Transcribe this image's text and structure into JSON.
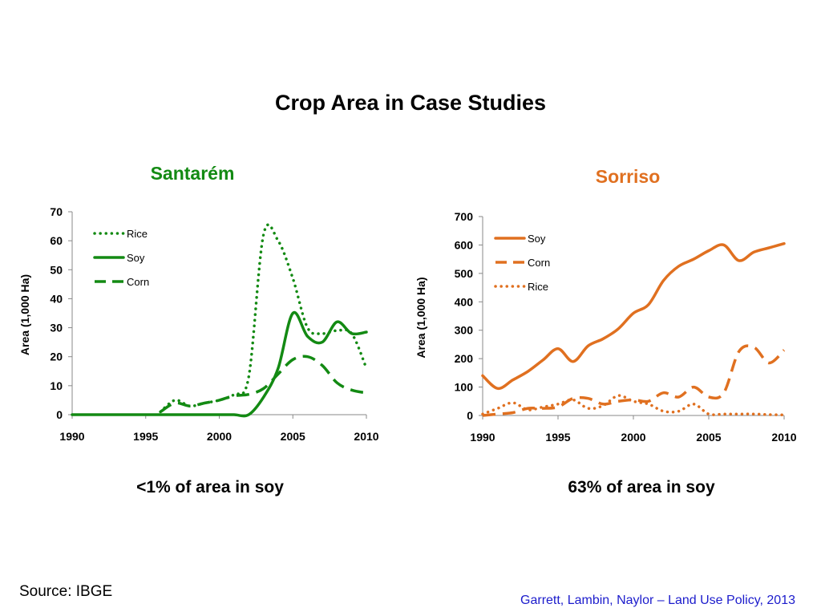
{
  "slide": {
    "title": "Crop Area in Case Studies",
    "source": "Source: IBGE",
    "citation": "Garrett, Lambin, Naylor  – Land Use Policy, 2013"
  },
  "chart_data": [
    {
      "type": "line",
      "title": "Santarém",
      "caption": "<1% of area in soy",
      "ylabel": "Area (1,000 Ha)",
      "xlabel": "",
      "xlim": [
        1990,
        2010
      ],
      "ylim": [
        0,
        70
      ],
      "xticks": [
        1990,
        1995,
        2000,
        2005,
        2010
      ],
      "yticks": [
        0,
        10,
        20,
        30,
        40,
        50,
        60,
        70
      ],
      "color": "#138a13",
      "legend": "top-left",
      "grid": false,
      "series": [
        {
          "name": "Rice",
          "style": "dotted",
          "x": [
            1996,
            1997,
            1998,
            1999,
            2000,
            2001,
            2002,
            2003,
            2004,
            2005,
            2006,
            2007,
            2008,
            2009,
            2010
          ],
          "y": [
            1,
            5,
            3,
            4,
            5,
            7,
            13,
            62,
            60,
            47,
            30,
            28,
            29,
            28,
            16
          ]
        },
        {
          "name": "Soy",
          "style": "solid",
          "x": [
            1990,
            1995,
            2000,
            2001,
            2002,
            2003,
            2004,
            2005,
            2006,
            2007,
            2008,
            2009,
            2010
          ],
          "y": [
            0,
            0,
            0,
            0,
            0,
            6,
            16,
            35,
            27,
            25,
            32,
            28,
            28.5
          ]
        },
        {
          "name": "Corn",
          "style": "dashed",
          "x": [
            1996,
            1997,
            1998,
            1999,
            2000,
            2001,
            2002,
            2003,
            2004,
            2005,
            2006,
            2007,
            2008,
            2009,
            2010
          ],
          "y": [
            1,
            4,
            3,
            4,
            5,
            6.5,
            7,
            9,
            14,
            19,
            20,
            17,
            11,
            8.5,
            7.5
          ]
        }
      ]
    },
    {
      "type": "line",
      "title": "Sorriso",
      "caption": "63% of area in soy",
      "ylabel": "Area (1,000 Ha)",
      "xlabel": "",
      "xlim": [
        1990,
        2010
      ],
      "ylim": [
        0,
        700
      ],
      "xticks": [
        1990,
        1995,
        2000,
        2005,
        2010
      ],
      "yticks": [
        0,
        100,
        200,
        300,
        400,
        500,
        600,
        700
      ],
      "color": "#e07020",
      "legend": "top-left",
      "grid": false,
      "series": [
        {
          "name": "Soy",
          "style": "solid",
          "x": [
            1990,
            1991,
            1992,
            1993,
            1994,
            1995,
            1996,
            1997,
            1998,
            1999,
            2000,
            2001,
            2002,
            2003,
            2004,
            2005,
            2006,
            2007,
            2008,
            2009,
            2010
          ],
          "y": [
            140,
            95,
            125,
            155,
            195,
            235,
            190,
            245,
            270,
            305,
            360,
            390,
            475,
            525,
            550,
            580,
            600,
            545,
            575,
            590,
            605
          ]
        },
        {
          "name": "Corn",
          "style": "dashed",
          "x": [
            1990,
            1991,
            1992,
            1993,
            1994,
            1995,
            1996,
            1997,
            1998,
            1999,
            2000,
            2001,
            2002,
            2003,
            2004,
            2005,
            2006,
            2007,
            2008,
            2009,
            2010
          ],
          "y": [
            0,
            5,
            10,
            25,
            25,
            30,
            60,
            60,
            40,
            50,
            55,
            50,
            80,
            65,
            100,
            65,
            80,
            225,
            240,
            185,
            230
          ]
        },
        {
          "name": "Rice",
          "style": "dotted",
          "x": [
            1990,
            1991,
            1992,
            1993,
            1994,
            1995,
            1996,
            1997,
            1998,
            1999,
            2000,
            2001,
            2002,
            2003,
            2004,
            2005,
            2006,
            2007,
            2008,
            2009,
            2010
          ],
          "y": [
            5,
            25,
            45,
            20,
            30,
            40,
            55,
            25,
            35,
            70,
            50,
            40,
            15,
            15,
            40,
            5,
            5,
            5,
            5,
            3,
            2
          ]
        }
      ]
    }
  ]
}
